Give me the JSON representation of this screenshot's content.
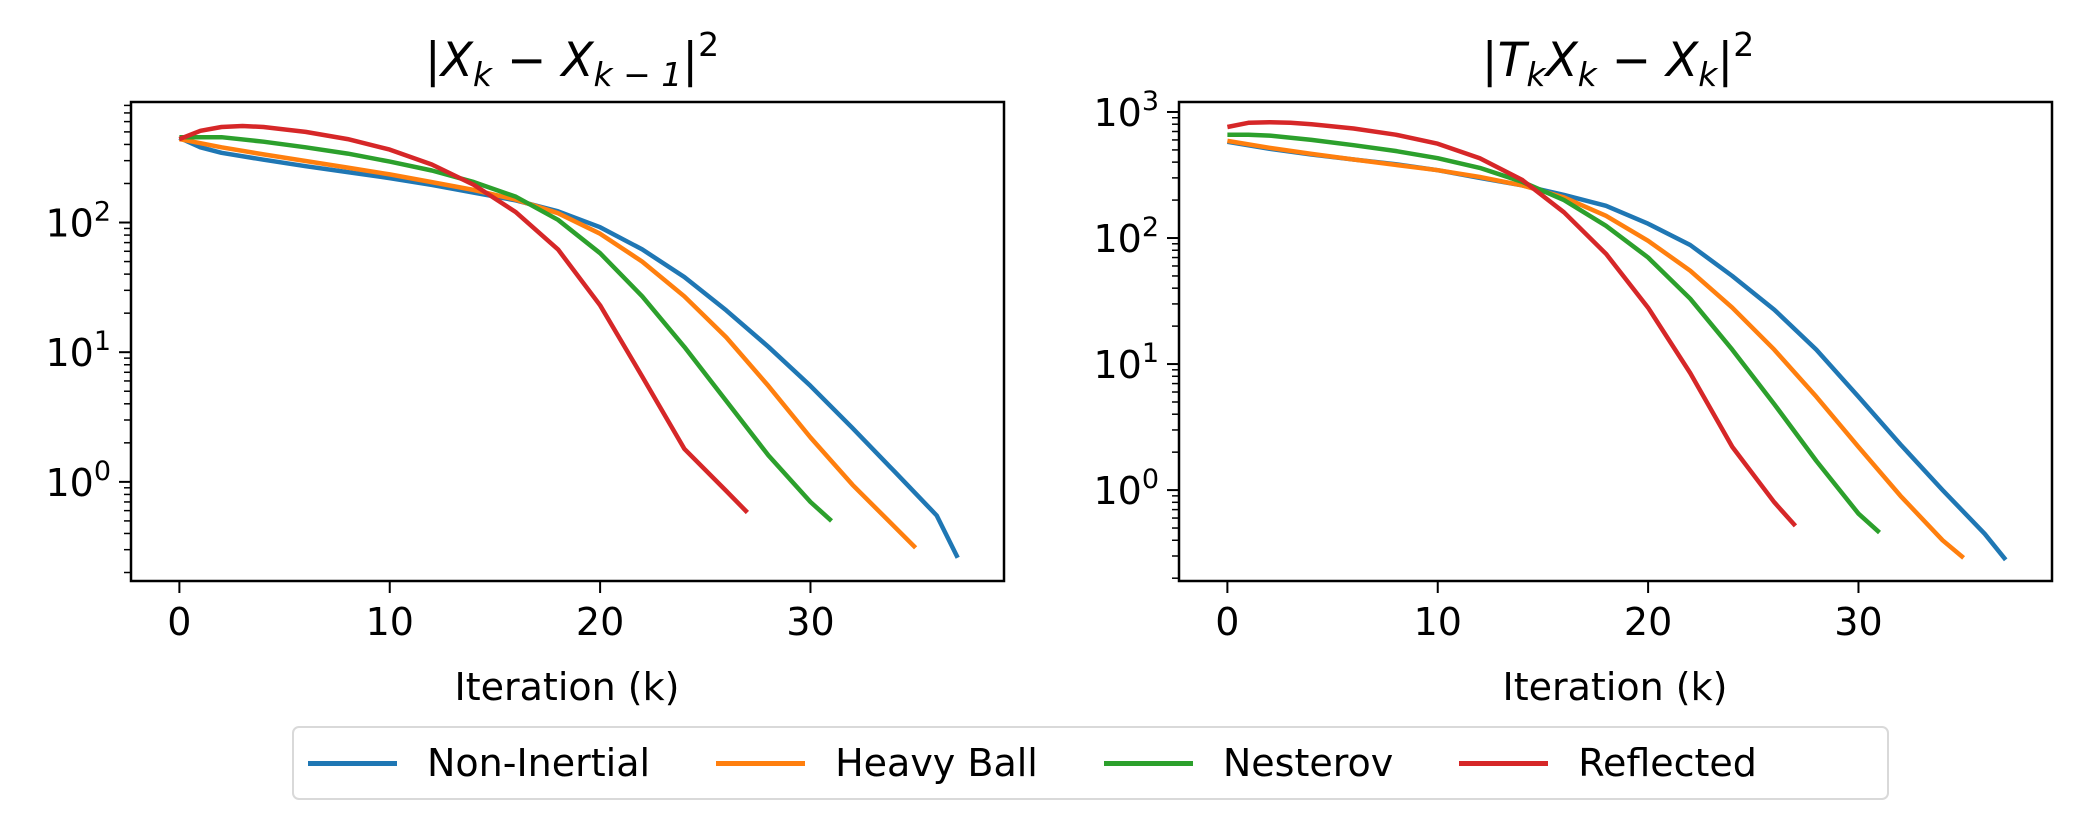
{
  "colors": {
    "non_inertial": "#1f77b4",
    "heavy_ball": "#ff7f0e",
    "nesterov": "#2ca02c",
    "reflected": "#d62728"
  },
  "legend": {
    "placement": "bottom-center",
    "items": [
      {
        "label": "Non-Inertial",
        "color": "#1f77b4"
      },
      {
        "label": "Heavy Ball",
        "color": "#ff7f0e"
      },
      {
        "label": "Nesterov",
        "color": "#2ca02c"
      },
      {
        "label": "Reflected",
        "color": "#d62728"
      }
    ]
  },
  "chart_data": [
    {
      "type": "line",
      "title": "|X_k − X_{k−1}|²",
      "title_parts": {
        "bar_left": "|",
        "X": "X",
        "k": "k",
        "minus": " − ",
        "X2": "X",
        "k_minus_1": "k − 1",
        "bar_right": "|",
        "exp": "2"
      },
      "xlabel": "Iteration (k)",
      "ylabel": "",
      "yscale": "log",
      "xlim": [
        -2.3,
        39.2
      ],
      "ylim": [
        0.172,
        850
      ],
      "xticks": [
        0,
        10,
        20,
        30
      ],
      "xtick_labels": [
        "0",
        "10",
        "20",
        "30"
      ],
      "yticks": [
        1,
        10,
        100
      ],
      "ytick_labels": [
        {
          "base": "10",
          "exp": "0"
        },
        {
          "base": "10",
          "exp": "1"
        },
        {
          "base": "10",
          "exp": "2"
        }
      ],
      "grid": false,
      "series": [
        {
          "name": "Non-Inertial",
          "color": "#1f77b4",
          "x": [
            0,
            1,
            2,
            4,
            6,
            8,
            10,
            12,
            14,
            16,
            18,
            20,
            22,
            24,
            26,
            28,
            30,
            32,
            34,
            36,
            37
          ],
          "y": [
            450,
            380,
            345,
            305,
            272,
            245,
            220,
            195,
            170,
            148,
            122,
            92,
            62,
            38,
            21,
            11,
            5.5,
            2.6,
            1.2,
            0.55,
            0.26
          ]
        },
        {
          "name": "Heavy Ball",
          "color": "#ff7f0e",
          "x": [
            0,
            2,
            4,
            6,
            8,
            10,
            12,
            14,
            16,
            18,
            20,
            22,
            24,
            26,
            28,
            30,
            32,
            34,
            35
          ],
          "y": [
            440,
            380,
            335,
            298,
            265,
            235,
            205,
            178,
            150,
            118,
            82,
            50,
            27,
            13,
            5.5,
            2.2,
            0.95,
            0.45,
            0.31
          ]
        },
        {
          "name": "Nesterov",
          "color": "#2ca02c",
          "x": [
            0,
            1,
            2,
            4,
            6,
            8,
            10,
            12,
            14,
            16,
            18,
            20,
            22,
            24,
            26,
            28,
            30,
            31
          ],
          "y": [
            455,
            455,
            455,
            420,
            380,
            340,
            295,
            252,
            205,
            158,
            105,
            58,
            27,
            11,
            4.2,
            1.6,
            0.7,
            0.5
          ]
        },
        {
          "name": "Reflected",
          "color": "#d62728",
          "x": [
            0,
            1,
            2,
            3,
            4,
            6,
            8,
            10,
            12,
            14,
            16,
            18,
            20,
            22,
            24,
            26,
            27
          ],
          "y": [
            440,
            510,
            545,
            555,
            545,
            500,
            440,
            365,
            280,
            195,
            120,
            62,
            23,
            6.5,
            1.8,
            0.85,
            0.58
          ]
        }
      ]
    },
    {
      "type": "line",
      "title": "|T_k X_k − X_k|²",
      "title_parts": {
        "bar_left": "|",
        "T": "T",
        "k1": "k",
        "X": "X",
        "k2": "k",
        "minus": " − ",
        "X2": "X",
        "k3": "k",
        "bar_right": "|",
        "exp": "2"
      },
      "xlabel": "Iteration (k)",
      "ylabel": "",
      "yscale": "log",
      "xlim": [
        -2.3,
        39.2
      ],
      "ylim": [
        0.19,
        1200
      ],
      "xticks": [
        0,
        10,
        20,
        30
      ],
      "xtick_labels": [
        "0",
        "10",
        "20",
        "30"
      ],
      "yticks": [
        1,
        10,
        100,
        1000
      ],
      "ytick_labels": [
        {
          "base": "10",
          "exp": "0"
        },
        {
          "base": "10",
          "exp": "1"
        },
        {
          "base": "10",
          "exp": "2"
        },
        {
          "base": "10",
          "exp": "3"
        }
      ],
      "grid": false,
      "series": [
        {
          "name": "Non-Inertial",
          "color": "#1f77b4",
          "x": [
            0,
            2,
            4,
            6,
            8,
            10,
            12,
            14,
            16,
            18,
            20,
            22,
            24,
            26,
            28,
            30,
            32,
            34,
            36,
            37
          ],
          "y": [
            580,
            510,
            460,
            420,
            385,
            345,
            300,
            262,
            220,
            180,
            130,
            88,
            50,
            27,
            13,
            5.5,
            2.3,
            1.0,
            0.45,
            0.28
          ]
        },
        {
          "name": "Heavy Ball",
          "color": "#ff7f0e",
          "x": [
            0,
            2,
            4,
            6,
            8,
            10,
            12,
            14,
            16,
            18,
            20,
            22,
            24,
            26,
            28,
            30,
            32,
            34,
            35
          ],
          "y": [
            590,
            520,
            465,
            420,
            380,
            345,
            305,
            262,
            210,
            150,
            95,
            55,
            28,
            13,
            5.5,
            2.2,
            0.9,
            0.4,
            0.29
          ]
        },
        {
          "name": "Nesterov",
          "color": "#2ca02c",
          "x": [
            0,
            1,
            2,
            4,
            6,
            8,
            10,
            12,
            14,
            16,
            18,
            20,
            22,
            24,
            26,
            28,
            30,
            31
          ],
          "y": [
            660,
            660,
            650,
            600,
            545,
            490,
            430,
            360,
            280,
            200,
            125,
            70,
            33,
            13,
            4.8,
            1.7,
            0.65,
            0.46
          ]
        },
        {
          "name": "Reflected",
          "color": "#d62728",
          "x": [
            0,
            1,
            2,
            3,
            4,
            6,
            8,
            10,
            12,
            14,
            16,
            18,
            20,
            22,
            24,
            26,
            27
          ],
          "y": [
            760,
            820,
            830,
            820,
            800,
            740,
            660,
            560,
            430,
            290,
            160,
            75,
            28,
            8.5,
            2.2,
            0.8,
            0.52
          ]
        }
      ]
    }
  ]
}
